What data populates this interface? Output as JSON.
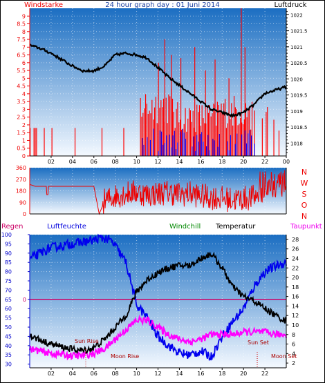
{
  "header": {
    "left_label": "Windstarke",
    "title": "24 hour graph day : 01 Juni 2014",
    "right_label": "Luftdruck"
  },
  "wind_compass": [
    "N",
    "W",
    "S",
    "O",
    "N"
  ],
  "lower_labels": {
    "regen": "Regen",
    "luftfeuchte": "Luftfeuchte",
    "windchill": "Windchill",
    "temperatur": "Temperatur",
    "taupunkt": "Taupunkt"
  },
  "annotations": {
    "sun_rise": "Sun Rise",
    "moon_rise": "Moon Rise",
    "sun_set": "Sun Set",
    "moon_set": "Moon Set",
    "regen_zero": "0"
  },
  "colors": {
    "wind_axis": "#ee0000",
    "pressure": "#000000",
    "wind_dir": "#ee0000",
    "humidity": "#0000ee",
    "temperature": "#000000",
    "dewpoint": "#ff00ff",
    "rain_line": "#cc0066",
    "gust_bars": "#ff0000",
    "avg_bars": "#0000ff",
    "panel_top": "#1a6fc4",
    "panel_bottom": "#ffffff"
  },
  "chart_data": [
    {
      "id": "wind_pressure",
      "type": "bar",
      "y_left": {
        "min": 0,
        "max": 9.5,
        "ticks": [
          "0",
          "0.5",
          "1",
          "1.5",
          "2",
          "2.5",
          "3",
          "3.5",
          "4",
          "4.5",
          "5",
          "5.5",
          "6",
          "6.5",
          "7",
          "7.5",
          "8",
          "8.5",
          "9"
        ]
      },
      "y_right": {
        "min": 1017.6,
        "max": 1022.2,
        "ticks": [
          "1018",
          "1018.5",
          "1019",
          "1019.5",
          "1020",
          "1020.5",
          "1021",
          "1021.5",
          "1022"
        ]
      },
      "x_ticks": [
        "02",
        "04",
        "06",
        "08",
        "10",
        "12",
        "14",
        "16",
        "18",
        "20",
        "22",
        "00"
      ],
      "pressure_series": {
        "x": [
          0,
          1,
          2,
          3,
          4,
          5,
          6,
          7,
          8,
          9,
          10,
          11,
          12,
          13,
          14,
          15,
          16,
          17,
          18,
          19,
          20,
          21,
          22,
          23,
          24
        ],
        "y": [
          1021.05,
          1020.95,
          1020.8,
          1020.6,
          1020.4,
          1020.25,
          1020.25,
          1020.4,
          1020.75,
          1020.8,
          1020.75,
          1020.65,
          1020.35,
          1020.05,
          1019.8,
          1019.55,
          1019.3,
          1019.05,
          1018.95,
          1018.85,
          1018.95,
          1019.2,
          1019.55,
          1019.65,
          1019.75
        ]
      },
      "gust_peak": {
        "x": 19.75,
        "y": 9.5
      }
    },
    {
      "id": "wind_direction",
      "type": "line",
      "y_ticks": [
        "360",
        "270",
        "180",
        "90",
        "0"
      ],
      "x_ticks": [
        "02",
        "04",
        "06",
        "08",
        "10",
        "12",
        "14",
        "16",
        "18",
        "20",
        "22",
        "00"
      ],
      "series": {
        "x": [
          0,
          0.5,
          1,
          2,
          3,
          4,
          5,
          6,
          6.5,
          7,
          8,
          9,
          10,
          11,
          12,
          13,
          14,
          15,
          16,
          17,
          18,
          19,
          20,
          21,
          22,
          23,
          24
        ],
        "y": [
          230,
          215,
          215,
          215,
          215,
          215,
          215,
          215,
          0,
          100,
          140,
          160,
          170,
          150,
          160,
          170,
          150,
          160,
          140,
          130,
          120,
          110,
          120,
          130,
          200,
          230,
          230
        ]
      }
    },
    {
      "id": "humidity_temperature",
      "type": "line",
      "y_left_ticks": [
        "30",
        "35",
        "40",
        "45",
        "50",
        "55",
        "60",
        "65",
        "70",
        "75",
        "80",
        "85",
        "90",
        "95",
        "100"
      ],
      "y_right_ticks": [
        "2",
        "4",
        "6",
        "8",
        "10",
        "12",
        "14",
        "16",
        "18",
        "20",
        "22",
        "24",
        "26",
        "28"
      ],
      "x_ticks": [
        "02",
        "04",
        "06",
        "08",
        "10",
        "12",
        "14",
        "16",
        "18",
        "20",
        "22"
      ],
      "humidity": {
        "x": [
          0,
          1,
          2,
          3,
          4,
          5,
          6,
          6.5,
          7,
          7.5,
          8,
          9,
          10,
          11,
          12,
          13,
          14,
          15,
          16,
          17,
          18,
          19,
          20,
          21,
          22,
          23,
          24
        ],
        "y": [
          87,
          90,
          93,
          94,
          95,
          96,
          97,
          98,
          98,
          97,
          94,
          85,
          62,
          55,
          45,
          40,
          36,
          35,
          37,
          34,
          45,
          53,
          60,
          72,
          80,
          83,
          85
        ]
      },
      "temperature": {
        "x": [
          0,
          1,
          2,
          3,
          4,
          5,
          6,
          7,
          8,
          9,
          10,
          11,
          12,
          13,
          14,
          15,
          16,
          17,
          18,
          19,
          20,
          21,
          22,
          23,
          24
        ],
        "y": [
          7.8,
          6.8,
          6.0,
          5.4,
          4.9,
          4.6,
          5.2,
          7.0,
          9.5,
          12.0,
          17.0,
          19.5,
          21.0,
          22.0,
          22.5,
          22.5,
          24.0,
          25.0,
          22.0,
          18.0,
          16.0,
          15.0,
          13.5,
          12.0,
          10.8
        ]
      },
      "dewpoint": {
        "x": [
          0,
          1,
          2,
          3,
          4,
          5,
          6,
          7,
          8,
          9,
          10,
          11,
          12,
          13,
          14,
          15,
          16,
          17,
          18,
          19,
          20,
          21,
          22,
          23,
          24
        ],
        "y": [
          5.0,
          4.5,
          4.0,
          3.8,
          3.5,
          3.6,
          4.0,
          5.0,
          7.0,
          9.0,
          11.0,
          11.0,
          9.5,
          8.0,
          7.0,
          6.5,
          7.0,
          8.0,
          8.0,
          8.0,
          8.5,
          8.5,
          8.5,
          8.0,
          8.0
        ]
      },
      "rain": {
        "value": 0
      }
    }
  ]
}
